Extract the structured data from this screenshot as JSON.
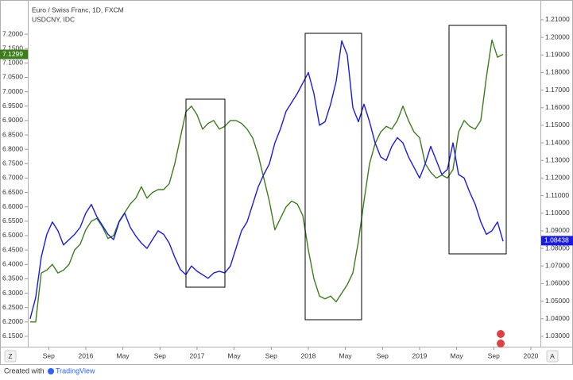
{
  "chart_data": {
    "type": "line",
    "x": [
      2015.5,
      2015.55,
      2015.6,
      2015.65,
      2015.7,
      2015.75,
      2015.8,
      2015.85,
      2015.9,
      2015.95,
      2016.0,
      2016.05,
      2016.1,
      2016.15,
      2016.2,
      2016.25,
      2016.3,
      2016.35,
      2016.4,
      2016.45,
      2016.5,
      2016.55,
      2016.6,
      2016.65,
      2016.7,
      2016.75,
      2016.8,
      2016.85,
      2016.9,
      2016.95,
      2017.0,
      2017.05,
      2017.1,
      2017.15,
      2017.2,
      2017.25,
      2017.3,
      2017.35,
      2017.4,
      2017.45,
      2017.5,
      2017.55,
      2017.6,
      2017.65,
      2017.7,
      2017.75,
      2017.8,
      2017.85,
      2017.9,
      2017.95,
      2018.0,
      2018.05,
      2018.1,
      2018.15,
      2018.2,
      2018.25,
      2018.3,
      2018.35,
      2018.4,
      2018.45,
      2018.5,
      2018.55,
      2018.6,
      2018.65,
      2018.7,
      2018.75,
      2018.8,
      2018.85,
      2018.9,
      2018.95,
      2019.0,
      2019.05,
      2019.1,
      2019.15,
      2019.2,
      2019.25,
      2019.3,
      2019.35,
      2019.4,
      2019.45,
      2019.5,
      2019.55,
      2019.6,
      2019.65,
      2019.7,
      2019.75
    ],
    "series": [
      {
        "name": "Euro / Swiss Franc, 1D, FXCM",
        "color": "#1a1ae6",
        "axis": "y2",
        "last_value": 1.08438,
        "values": [
          1.04,
          1.052,
          1.075,
          1.088,
          1.095,
          1.09,
          1.082,
          1.085,
          1.088,
          1.092,
          1.1,
          1.105,
          1.098,
          1.093,
          1.088,
          1.085,
          1.095,
          1.1,
          1.092,
          1.087,
          1.083,
          1.08,
          1.085,
          1.09,
          1.088,
          1.083,
          1.075,
          1.068,
          1.065,
          1.07,
          1.067,
          1.065,
          1.063,
          1.066,
          1.067,
          1.066,
          1.07,
          1.08,
          1.09,
          1.095,
          1.105,
          1.115,
          1.122,
          1.128,
          1.14,
          1.148,
          1.158,
          1.163,
          1.168,
          1.174,
          1.18,
          1.168,
          1.15,
          1.152,
          1.162,
          1.175,
          1.198,
          1.19,
          1.16,
          1.152,
          1.162,
          1.152,
          1.14,
          1.132,
          1.13,
          1.138,
          1.143,
          1.14,
          1.132,
          1.126,
          1.12,
          1.128,
          1.138,
          1.13,
          1.122,
          1.125,
          1.14,
          1.122,
          1.12,
          1.112,
          1.105,
          1.095,
          1.088,
          1.09,
          1.095,
          1.084
        ]
      },
      {
        "name": "USDCNY, IDC",
        "color": "#3d7e1b",
        "axis": "y",
        "last_value": 7.1299,
        "values": [
          6.2,
          6.2,
          6.37,
          6.38,
          6.4,
          6.37,
          6.38,
          6.4,
          6.45,
          6.47,
          6.52,
          6.55,
          6.56,
          6.53,
          6.49,
          6.5,
          6.55,
          6.58,
          6.61,
          6.63,
          6.67,
          6.63,
          6.65,
          6.66,
          6.66,
          6.68,
          6.75,
          6.84,
          6.93,
          6.95,
          6.92,
          6.87,
          6.89,
          6.9,
          6.87,
          6.88,
          6.9,
          6.9,
          6.89,
          6.87,
          6.84,
          6.78,
          6.7,
          6.62,
          6.52,
          6.56,
          6.6,
          6.62,
          6.61,
          6.57,
          6.45,
          6.35,
          6.29,
          6.28,
          6.29,
          6.27,
          6.3,
          6.33,
          6.37,
          6.48,
          6.62,
          6.75,
          6.82,
          6.86,
          6.88,
          6.87,
          6.9,
          6.95,
          6.9,
          6.86,
          6.84,
          6.75,
          6.72,
          6.7,
          6.71,
          6.7,
          6.73,
          6.86,
          6.9,
          6.88,
          6.87,
          6.9,
          7.05,
          7.18,
          7.12,
          7.13
        ]
      }
    ],
    "xlim": [
      2015.479,
      2020.086
    ],
    "xticks": [
      {
        "value": 2015.667,
        "label": "Sep"
      },
      2016,
      {
        "value": 2016.333,
        "label": "May"
      },
      {
        "value": 2016.667,
        "label": "Sep"
      },
      2017,
      {
        "value": 2017.333,
        "label": "May"
      },
      {
        "value": 2017.667,
        "label": "Sep"
      },
      2018,
      {
        "value": 2018.333,
        "label": "May"
      },
      {
        "value": 2018.667,
        "label": "Sep"
      },
      2019,
      {
        "value": 2019.333,
        "label": "May"
      },
      {
        "value": 2019.667,
        "label": "Sep"
      },
      2020
    ],
    "ylim": [
      6.114,
      7.305
    ],
    "yticks": [
      {
        "value": 6.15,
        "label": "6.1500"
      },
      {
        "value": 6.2,
        "label": "6.2000"
      },
      {
        "value": 6.25,
        "label": "6.2500"
      },
      {
        "value": 6.3,
        "label": "6.3000"
      },
      {
        "value": 6.35,
        "label": "6.3500"
      },
      {
        "value": 6.4,
        "label": "6.4000"
      },
      {
        "value": 6.45,
        "label": "6.4500"
      },
      {
        "value": 6.5,
        "label": "6.5000"
      },
      {
        "value": 6.55,
        "label": "6.5500"
      },
      {
        "value": 6.6,
        "label": "6.6000"
      },
      {
        "value": 6.65,
        "label": "6.6500"
      },
      {
        "value": 6.7,
        "label": "6.7000"
      },
      {
        "value": 6.75,
        "label": "6.7500"
      },
      {
        "value": 6.8,
        "label": "6.8000"
      },
      {
        "value": 6.85,
        "label": "6.8500"
      },
      {
        "value": 6.9,
        "label": "6.9000"
      },
      {
        "value": 6.95,
        "label": "6.9500"
      },
      {
        "value": 7.0,
        "label": "7.0000"
      },
      {
        "value": 7.05,
        "label": "7.0500"
      },
      {
        "value": 7.1,
        "label": "7.1000"
      },
      {
        "value": 7.15,
        "label": "7.1500"
      },
      {
        "value": 7.2,
        "label": "7.2000"
      }
    ],
    "y2lim": [
      1.0241,
      1.219
    ],
    "y2ticks": [
      {
        "value": 1.03,
        "label": "1.03000"
      },
      {
        "value": 1.04,
        "label": "1.04000"
      },
      {
        "value": 1.05,
        "label": "1.05000"
      },
      {
        "value": 1.06,
        "label": "1.06000"
      },
      {
        "value": 1.07,
        "label": "1.07000"
      },
      {
        "value": 1.08,
        "label": "1.08000"
      },
      {
        "value": 1.09,
        "label": "1.09000"
      },
      {
        "value": 1.1,
        "label": "1.10000"
      },
      {
        "value": 1.11,
        "label": "1.11000"
      },
      {
        "value": 1.12,
        "label": "1.12000"
      },
      {
        "value": 1.13,
        "label": "1.13000"
      },
      {
        "value": 1.14,
        "label": "1.14000"
      },
      {
        "value": 1.15,
        "label": "1.15000"
      },
      {
        "value": 1.16,
        "label": "1.16000"
      },
      {
        "value": 1.17,
        "label": "1.17000"
      },
      {
        "value": 1.18,
        "label": "1.18000"
      },
      {
        "value": 1.19,
        "label": "1.19000"
      },
      {
        "value": 1.2,
        "label": "1.20000"
      },
      {
        "value": 1.21,
        "label": "1.21000"
      }
    ],
    "grid": false
  },
  "controls": {
    "left": "Z",
    "right": "A"
  },
  "footer": {
    "text": "Created with",
    "brand": "TradingView"
  }
}
